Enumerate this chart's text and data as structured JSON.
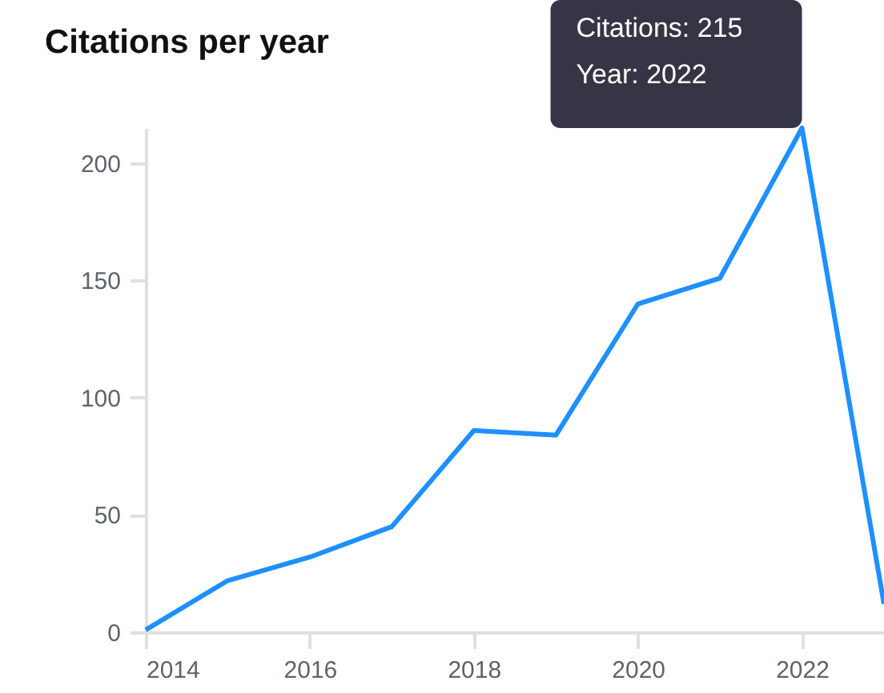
{
  "chart_data": {
    "type": "line",
    "title": "Citations per year",
    "x": [
      2014,
      2015,
      2016,
      2017,
      2018,
      2019,
      2020,
      2021,
      2022,
      2023
    ],
    "series": [
      {
        "color": "#1e90ff",
        "values": [
          1,
          22,
          32,
          45,
          86,
          84,
          140,
          151,
          215,
          12
        ]
      }
    ],
    "xlim": [
      2014,
      2023
    ],
    "xticks": [
      2014,
      2016,
      2018,
      2020,
      2022
    ],
    "ylim": [
      0,
      215
    ],
    "yticks": [
      0,
      50,
      100,
      150,
      200
    ],
    "grid": false,
    "marker": "none",
    "line_style": "solid",
    "annotations": [
      {
        "text": "Citations: 215\nYear: 2022",
        "x": 2022,
        "y": 215
      }
    ]
  }
}
